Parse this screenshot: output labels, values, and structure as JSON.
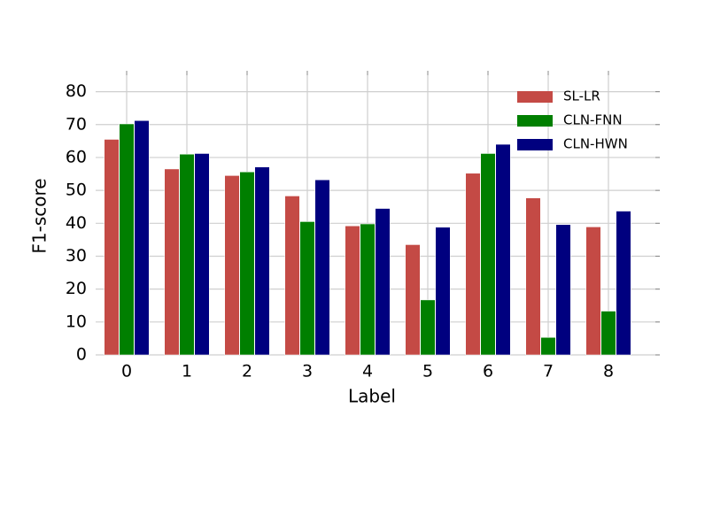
{
  "chart_data": {
    "type": "bar",
    "x_label": "Label",
    "y_label": "F1-score",
    "categories": [
      "0",
      "1",
      "2",
      "3",
      "4",
      "5",
      "6",
      "7",
      "8"
    ],
    "series": [
      {
        "name": "SL-LR",
        "color": "#c44a45",
        "values": [
          65.5,
          56.5,
          54.5,
          48.3,
          39.2,
          33.5,
          55.2,
          47.7,
          38.9
        ]
      },
      {
        "name": "CLN-FNN",
        "color": "#007f00",
        "values": [
          70.2,
          61.0,
          55.6,
          40.5,
          39.8,
          16.7,
          61.2,
          5.3,
          13.3
        ]
      },
      {
        "name": "CLN-HWN",
        "color": "#00007f",
        "values": [
          71.2,
          61.2,
          57.1,
          53.2,
          44.5,
          38.8,
          64.0,
          39.6,
          43.7
        ]
      }
    ],
    "ylim": [
      0,
      85
    ],
    "yticks": [
      0,
      10,
      20,
      30,
      40,
      50,
      60,
      70,
      80
    ],
    "grid": true,
    "legend": "upper right"
  }
}
